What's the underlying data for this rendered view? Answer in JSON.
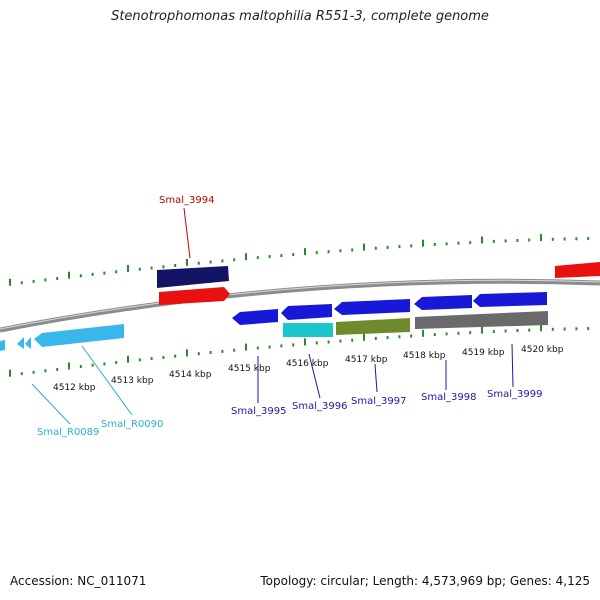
{
  "title": "Stenotrophomonas maltophilia R551-3, complete genome",
  "footer": {
    "accession": "Accession: NC_011071",
    "stats": "Topology: circular; Length: 4,573,969 bp; Genes: 4,125"
  },
  "colors": {
    "backbone": "#8c8c8c",
    "ticks": "#2a8a2a",
    "label_red": "#c00000",
    "label_blue": "#1a1aa6",
    "label_cyan": "#2bb0cc"
  },
  "scale_labels": [
    "4512 kbp",
    "4513 kbp",
    "4514 kbp",
    "4515 kbp",
    "4516 kbp",
    "4517 kbp",
    "4518 kbp",
    "4519 kbp",
    "4520 kbp"
  ],
  "genes": [
    {
      "id": "smal-r0089",
      "label": "Smal_R0089",
      "color": "#2bb0cc"
    },
    {
      "id": "smal-r0090",
      "label": "Smal_R0090",
      "color": "#2bb0cc"
    },
    {
      "id": "smal-3994",
      "label": "Smal_3994",
      "color": "#c00000"
    },
    {
      "id": "smal-3995",
      "label": "Smal_3995",
      "color": "#1a1aa6"
    },
    {
      "id": "smal-3996",
      "label": "Smal_3996",
      "color": "#1a1aa6"
    },
    {
      "id": "smal-3997",
      "label": "Smal_3997",
      "color": "#1a1aa6"
    },
    {
      "id": "smal-3998",
      "label": "Smal_3998",
      "color": "#1a1aa6"
    },
    {
      "id": "smal-3999",
      "label": "Smal_3999",
      "color": "#1a1aa6"
    }
  ]
}
